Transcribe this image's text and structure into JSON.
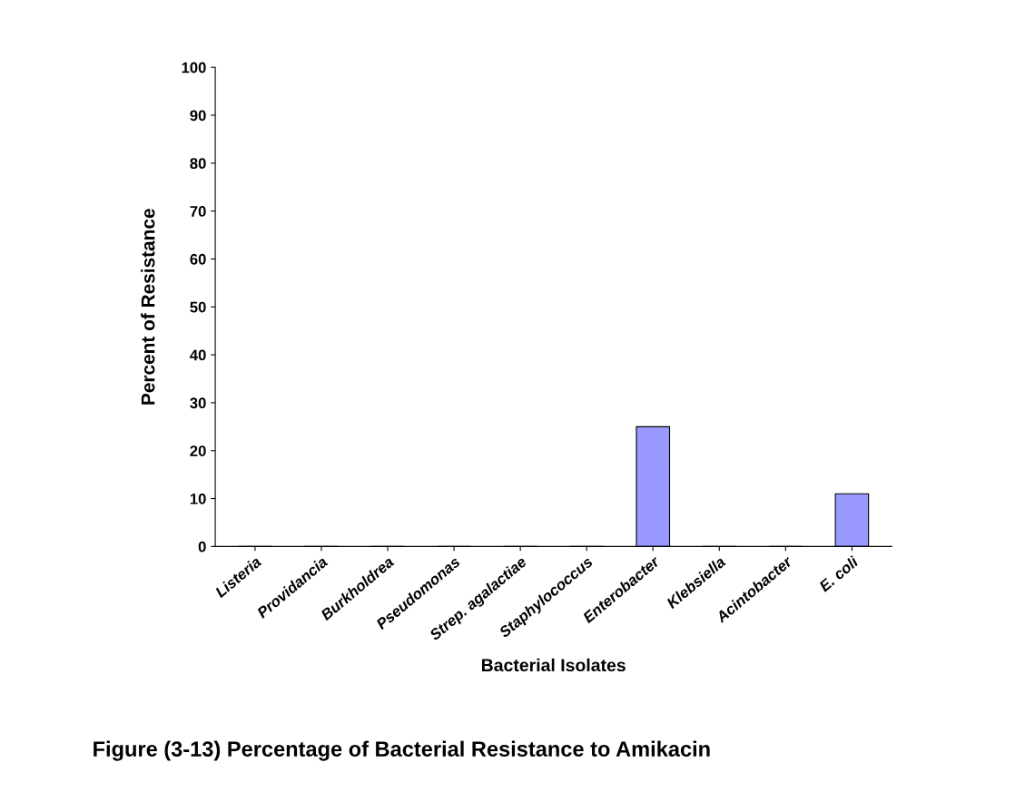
{
  "chart_data": {
    "type": "bar",
    "title": "Figure (3-13) Percentage of Bacterial Resistance to Amikacin",
    "xlabel": "Bacterial Isolates",
    "ylabel": "Percent of Resistance",
    "categories": [
      "Listeria",
      "Providancia",
      "Burkholdrea",
      "Pseudomonas",
      "Strep. agalactiae",
      "Staphylococcus",
      "Enterobacter",
      "Klebsiella",
      "Acintobacter",
      "E. coli"
    ],
    "values": [
      0,
      0,
      0,
      0,
      0,
      0,
      25,
      0,
      0,
      11
    ],
    "color": "#9999ff",
    "ylim": [
      0,
      100
    ],
    "yticks": [
      0,
      10,
      20,
      30,
      40,
      50,
      60,
      70,
      80,
      90,
      100
    ],
    "grid": false
  }
}
